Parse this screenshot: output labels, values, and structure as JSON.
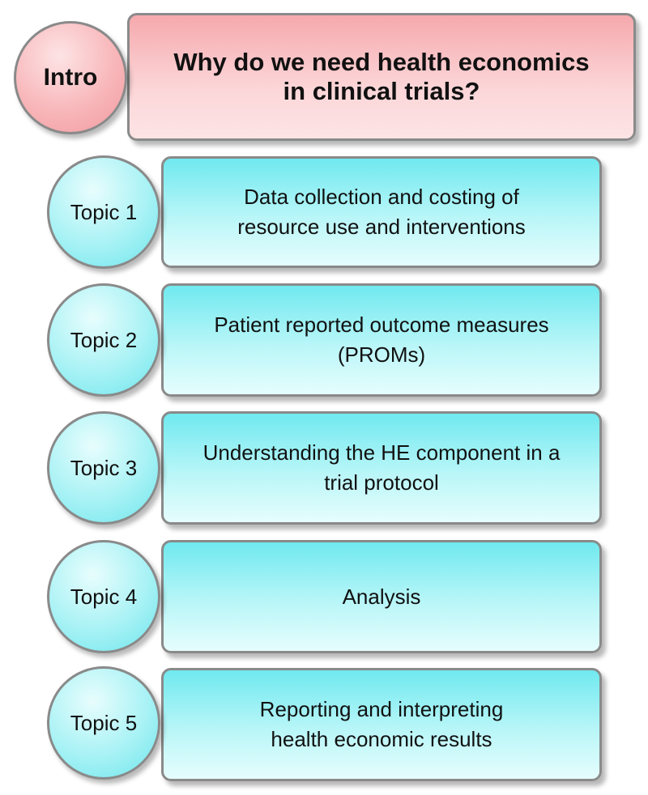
{
  "intro": {
    "circle_label": "Intro",
    "title_line1": "Why do we need health economics",
    "title_line2": "in clinical trials?"
  },
  "topics": [
    {
      "label": "Topic 1",
      "line1": "Data collection and costing of",
      "line2": "resource use and interventions"
    },
    {
      "label": "Topic 2",
      "line1": "Patient reported outcome measures",
      "line2": "(PROMs)"
    },
    {
      "label": "Topic 3",
      "line1": "Understanding the HE component in a",
      "line2": "trial protocol"
    },
    {
      "label": "Topic 4",
      "line1": "Analysis",
      "line2": ""
    },
    {
      "label": "Topic 5",
      "line1": "Reporting and interpreting",
      "line2": "health economic results"
    }
  ],
  "colors": {
    "intro_fill": "#fcd6d8",
    "topic_fill": "#b9f6f8",
    "border": "#8a8a8a"
  }
}
